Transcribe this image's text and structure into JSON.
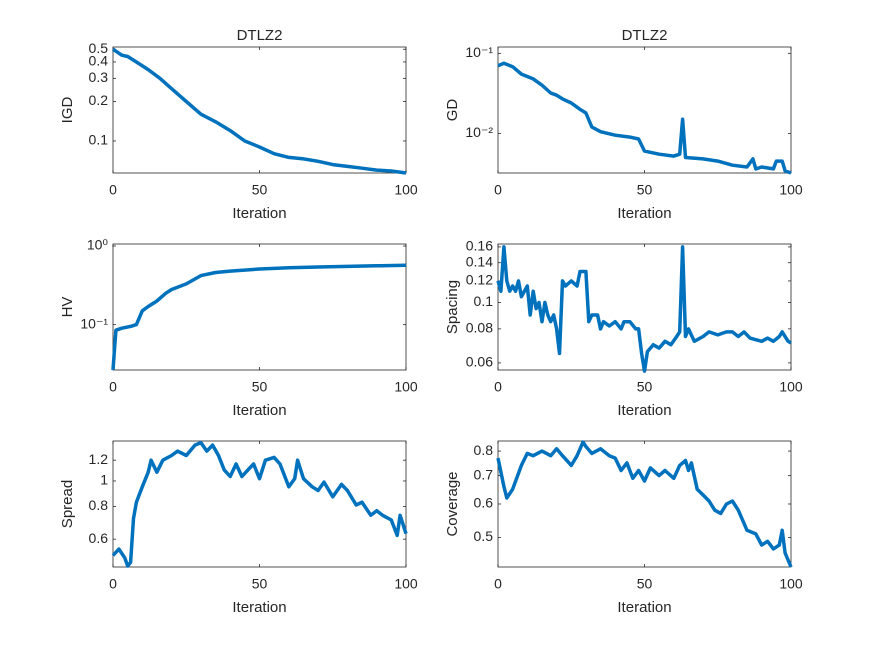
{
  "chart_data": [
    {
      "type": "line",
      "title": "DTLZ2",
      "xlabel": "Iteration",
      "ylabel": "IGD",
      "yscale": "log",
      "color": "#0072bd",
      "x": [
        0,
        3,
        5,
        8,
        12,
        16,
        20,
        25,
        30,
        35,
        40,
        45,
        50,
        55,
        60,
        65,
        70,
        75,
        80,
        85,
        90,
        95,
        100
      ],
      "values": [
        0.5,
        0.45,
        0.44,
        0.4,
        0.35,
        0.3,
        0.25,
        0.2,
        0.16,
        0.14,
        0.12,
        0.1,
        0.09,
        0.08,
        0.075,
        0.073,
        0.07,
        0.066,
        0.064,
        0.062,
        0.06,
        0.059,
        0.057
      ],
      "xlim": [
        0,
        100
      ],
      "xticks": [
        0,
        50,
        100
      ],
      "ylim": [
        0.057,
        0.52
      ],
      "yticks": [
        0.1,
        0.2,
        0.3,
        0.4,
        0.5
      ]
    },
    {
      "type": "line",
      "title": "DTLZ2",
      "xlabel": "Iteration",
      "ylabel": "GD",
      "yscale": "log",
      "color": "#0072bd",
      "x": [
        0,
        2,
        5,
        8,
        12,
        15,
        18,
        20,
        22,
        25,
        28,
        30,
        32,
        35,
        40,
        45,
        48,
        50,
        55,
        60,
        62,
        63,
        64,
        70,
        75,
        80,
        85,
        87,
        88,
        90,
        94,
        95,
        97,
        98,
        100
      ],
      "values": [
        0.07,
        0.075,
        0.068,
        0.055,
        0.048,
        0.04,
        0.032,
        0.03,
        0.027,
        0.024,
        0.02,
        0.018,
        0.012,
        0.0105,
        0.0095,
        0.009,
        0.0085,
        0.006,
        0.0055,
        0.0052,
        0.0055,
        0.015,
        0.005,
        0.0048,
        0.0045,
        0.004,
        0.0038,
        0.0048,
        0.0036,
        0.0038,
        0.0036,
        0.0045,
        0.0045,
        0.0034,
        0.0032
      ],
      "xlim": [
        0,
        100
      ],
      "xticks": [
        0,
        50,
        100
      ],
      "ylim": [
        0.0032,
        0.12
      ],
      "yticks": [
        {
          "value": 0.01,
          "label": "10⁻²"
        },
        {
          "value": 0.1,
          "label": "10⁻¹"
        }
      ]
    },
    {
      "type": "line",
      "xlabel": "Iteration",
      "ylabel": "HV",
      "yscale": "log",
      "color": "#0072bd",
      "x": [
        0,
        1,
        3,
        6,
        8,
        10,
        12,
        15,
        18,
        20,
        25,
        30,
        35,
        40,
        50,
        60,
        70,
        80,
        90,
        100
      ],
      "values": [
        0.0265,
        0.085,
        0.09,
        0.095,
        0.1,
        0.15,
        0.17,
        0.2,
        0.25,
        0.28,
        0.33,
        0.42,
        0.46,
        0.48,
        0.51,
        0.53,
        0.54,
        0.55,
        0.56,
        0.57
      ],
      "xlim": [
        0,
        100
      ],
      "xticks": [
        0,
        50,
        100
      ],
      "ylim": [
        0.0265,
        1.06
      ],
      "yticks": [
        {
          "value": 0.1,
          "label": "10⁻¹"
        },
        {
          "value": 1,
          "label": "10⁰"
        }
      ]
    },
    {
      "type": "line",
      "xlabel": "Iteration",
      "ylabel": "Spacing",
      "yscale": "log",
      "color": "#0072bd",
      "x": [
        0,
        1,
        2,
        3,
        4,
        5,
        6,
        7,
        8,
        10,
        11,
        12,
        13,
        14,
        15,
        16,
        17,
        18,
        19,
        20,
        21,
        22,
        23,
        25,
        27,
        28,
        30,
        31,
        32,
        34,
        35,
        36,
        38,
        40,
        42,
        43,
        45,
        47,
        48,
        49,
        50,
        51,
        53,
        55,
        57,
        59,
        61,
        62,
        63,
        64,
        65,
        67,
        70,
        72,
        75,
        78,
        80,
        82,
        84,
        86,
        88,
        90,
        92,
        94,
        96,
        97,
        99,
        100
      ],
      "values": [
        0.12,
        0.11,
        0.16,
        0.12,
        0.11,
        0.115,
        0.11,
        0.12,
        0.105,
        0.115,
        0.09,
        0.11,
        0.095,
        0.1,
        0.085,
        0.1,
        0.09,
        0.085,
        0.09,
        0.08,
        0.065,
        0.12,
        0.115,
        0.12,
        0.115,
        0.13,
        0.13,
        0.085,
        0.09,
        0.09,
        0.08,
        0.085,
        0.082,
        0.085,
        0.08,
        0.085,
        0.085,
        0.08,
        0.08,
        0.065,
        0.056,
        0.066,
        0.07,
        0.068,
        0.072,
        0.07,
        0.075,
        0.078,
        0.16,
        0.075,
        0.08,
        0.072,
        0.075,
        0.078,
        0.076,
        0.078,
        0.078,
        0.075,
        0.078,
        0.074,
        0.073,
        0.072,
        0.074,
        0.072,
        0.075,
        0.078,
        0.072,
        0.071
      ],
      "xlim": [
        0,
        100
      ],
      "xticks": [
        0,
        50,
        100
      ],
      "ylim": [
        0.0565,
        0.164
      ],
      "yticks": [
        0.06,
        0.08,
        0.1,
        0.12,
        0.14,
        0.16
      ]
    },
    {
      "type": "line",
      "xlabel": "Iteration",
      "ylabel": "Spread",
      "yscale": "log",
      "color": "#0072bd",
      "x": [
        0,
        2,
        4,
        5,
        6,
        7,
        8,
        10,
        12,
        13,
        15,
        17,
        20,
        22,
        25,
        28,
        30,
        32,
        34,
        36,
        38,
        40,
        42,
        44,
        46,
        48,
        50,
        52,
        55,
        57,
        60,
        62,
        63,
        65,
        68,
        70,
        72,
        75,
        78,
        80,
        83,
        85,
        88,
        90,
        92,
        95,
        97,
        98,
        100
      ],
      "values": [
        0.52,
        0.55,
        0.51,
        0.474,
        0.49,
        0.72,
        0.83,
        0.95,
        1.08,
        1.2,
        1.08,
        1.2,
        1.25,
        1.3,
        1.25,
        1.37,
        1.4,
        1.3,
        1.37,
        1.25,
        1.1,
        1.04,
        1.16,
        1.04,
        1.1,
        1.16,
        1.02,
        1.2,
        1.23,
        1.16,
        0.95,
        1.02,
        1.2,
        1.02,
        0.95,
        0.92,
        0.99,
        0.87,
        0.97,
        0.92,
        0.81,
        0.83,
        0.74,
        0.77,
        0.74,
        0.71,
        0.62,
        0.74,
        0.63
      ],
      "xlim": [
        0,
        100
      ],
      "xticks": [
        0,
        50,
        100
      ],
      "ylim": [
        0.47,
        1.42
      ],
      "yticks": [
        0.6,
        0.8,
        1,
        1.2
      ]
    },
    {
      "type": "line",
      "xlabel": "Iteration",
      "ylabel": "Coverage",
      "yscale": "log",
      "color": "#0072bd",
      "x": [
        0,
        2,
        3,
        5,
        8,
        10,
        12,
        15,
        18,
        20,
        22,
        25,
        27,
        29,
        30,
        32,
        35,
        38,
        40,
        42,
        44,
        46,
        48,
        50,
        52,
        55,
        57,
        60,
        62,
        64,
        65,
        66,
        68,
        70,
        72,
        74,
        76,
        78,
        80,
        82,
        85,
        88,
        90,
        92,
        94,
        96,
        97,
        98,
        100
      ],
      "values": [
        0.77,
        0.66,
        0.62,
        0.65,
        0.74,
        0.79,
        0.78,
        0.8,
        0.78,
        0.81,
        0.78,
        0.74,
        0.78,
        0.84,
        0.82,
        0.79,
        0.81,
        0.78,
        0.77,
        0.72,
        0.75,
        0.69,
        0.72,
        0.68,
        0.73,
        0.7,
        0.72,
        0.69,
        0.74,
        0.76,
        0.72,
        0.75,
        0.65,
        0.63,
        0.61,
        0.58,
        0.57,
        0.6,
        0.61,
        0.58,
        0.52,
        0.51,
        0.48,
        0.49,
        0.47,
        0.48,
        0.52,
        0.46,
        0.426
      ],
      "xlim": [
        0,
        100
      ],
      "xticks": [
        0,
        50,
        100
      ],
      "ylim": [
        0.426,
        0.845
      ],
      "yticks": [
        0.5,
        0.6,
        0.7,
        0.8
      ]
    }
  ]
}
